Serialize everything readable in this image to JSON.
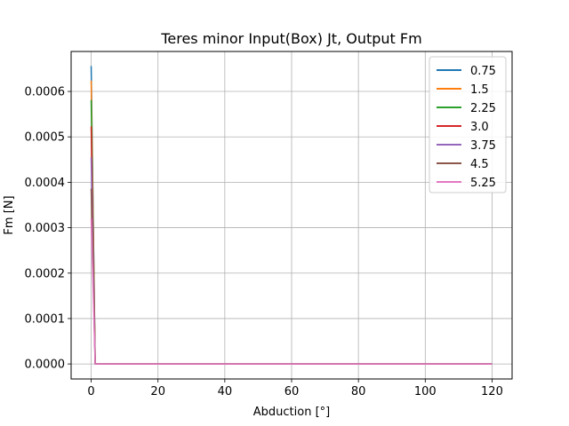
{
  "chart_data": {
    "type": "line",
    "title": "Teres minor Input(Box) Jt, Output Fm",
    "xlabel": "Abduction [°]",
    "ylabel": "Fm [N]",
    "xlim": [
      -6,
      126
    ],
    "ylim": [
      -3.3e-05,
      0.000688
    ],
    "x_ticks": [
      0,
      20,
      40,
      60,
      80,
      100,
      120
    ],
    "x_tick_labels": [
      "0",
      "20",
      "40",
      "60",
      "80",
      "100",
      "120"
    ],
    "y_ticks": [
      0,
      0.0001,
      0.0002,
      0.0003,
      0.0004,
      0.0005,
      0.0006
    ],
    "y_tick_labels": [
      "0.0000",
      "0.0001",
      "0.0002",
      "0.0003",
      "0.0004",
      "0.0005",
      "0.0006"
    ],
    "grid": true,
    "legend_position": "top-right",
    "series": [
      {
        "name": "0.75",
        "color": "#1f77b4",
        "x": [
          0,
          1.2,
          120
        ],
        "y": [
          0.000656,
          0,
          0
        ]
      },
      {
        "name": "1.5",
        "color": "#ff7f0e",
        "x": [
          0,
          1.2,
          120
        ],
        "y": [
          0.000624,
          0,
          0
        ]
      },
      {
        "name": "2.25",
        "color": "#2ca02c",
        "x": [
          0,
          1.2,
          120
        ],
        "y": [
          0.000581,
          0,
          0
        ]
      },
      {
        "name": "3.0",
        "color": "#d62728",
        "x": [
          0,
          1.2,
          120
        ],
        "y": [
          0.000523,
          0,
          0
        ]
      },
      {
        "name": "3.75",
        "color": "#9467bd",
        "x": [
          0,
          1.2,
          120
        ],
        "y": [
          0.000455,
          0,
          0
        ]
      },
      {
        "name": "4.5",
        "color": "#8c564b",
        "x": [
          0,
          1.2,
          120
        ],
        "y": [
          0.000386,
          0,
          0
        ]
      },
      {
        "name": "5.25",
        "color": "#e377c2",
        "x": [
          0,
          1.2,
          120
        ],
        "y": [
          0.00032,
          0,
          0
        ]
      }
    ]
  }
}
